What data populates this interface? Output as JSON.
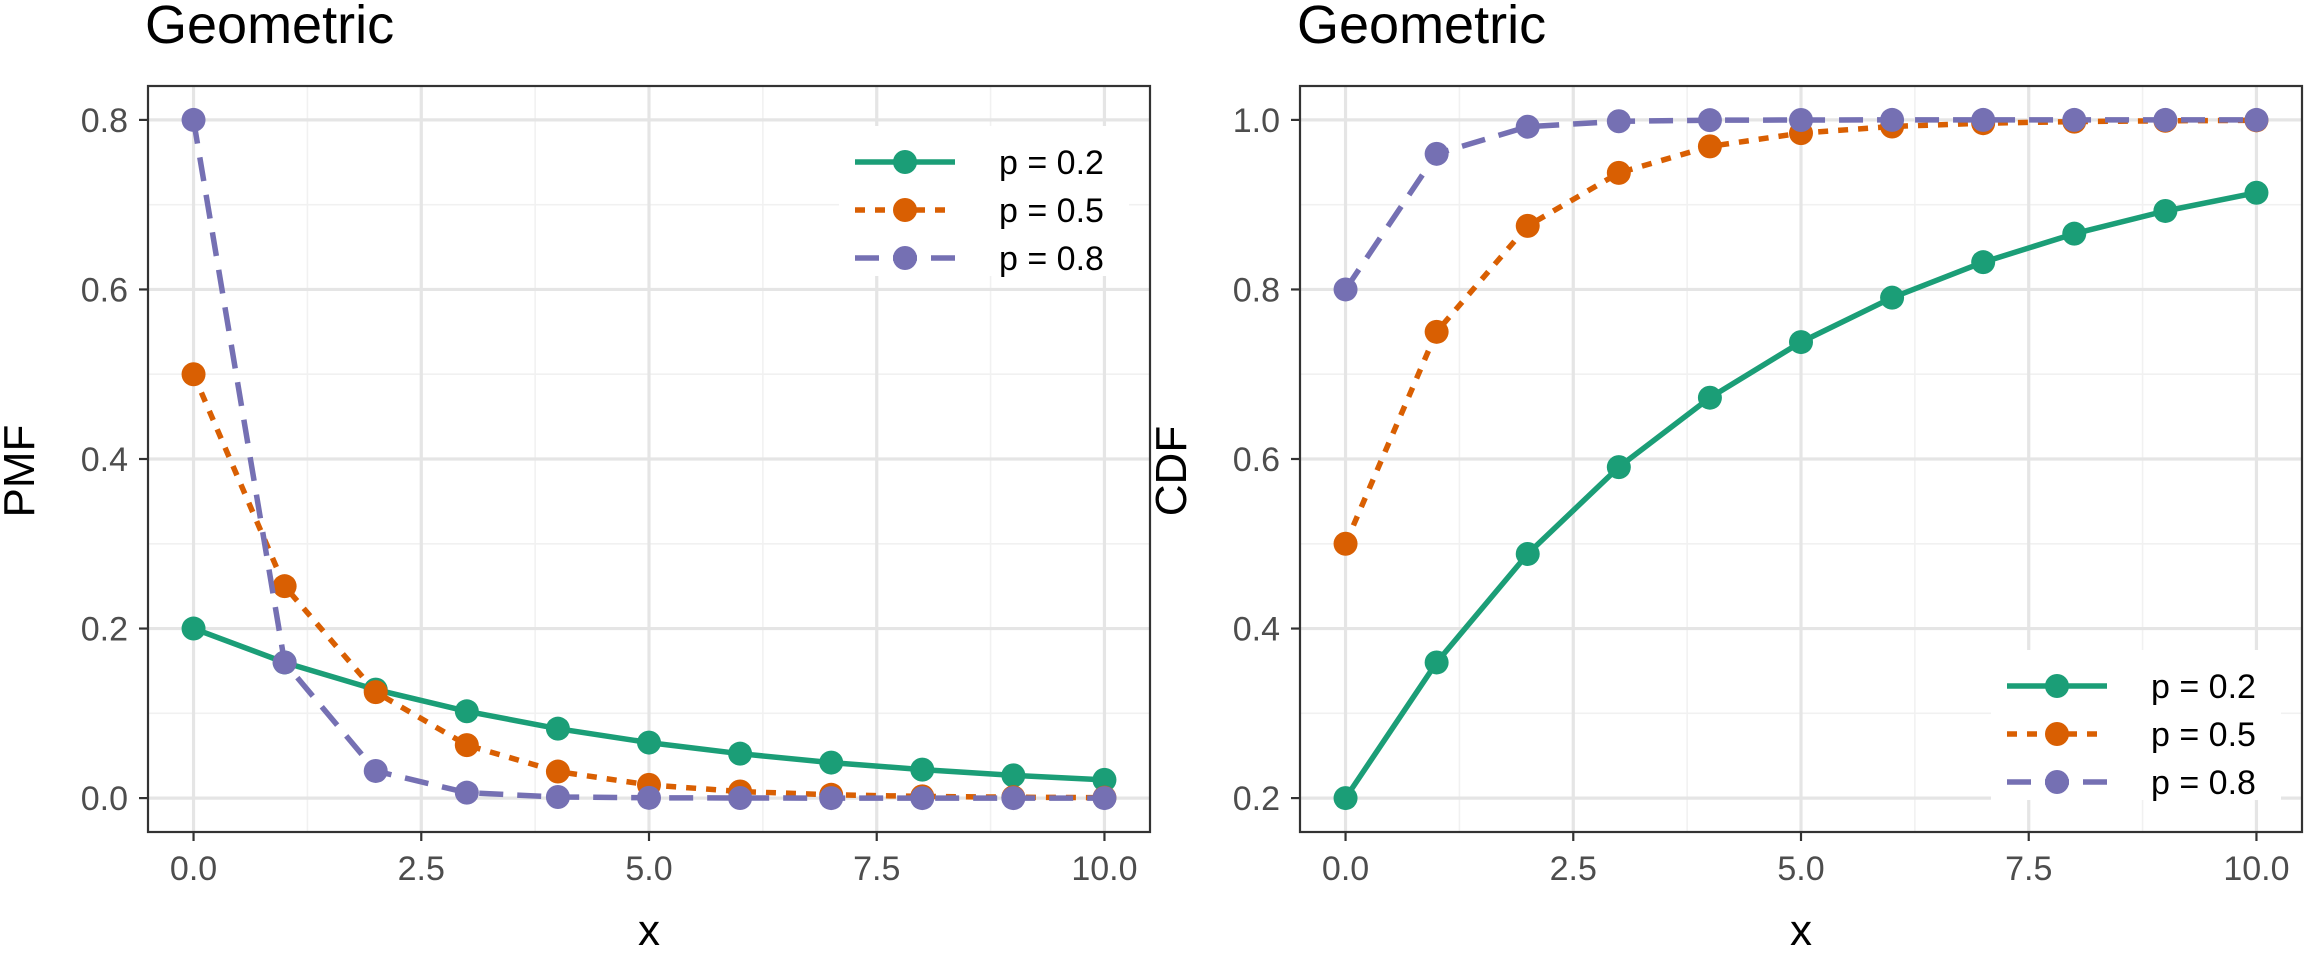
{
  "chart_data": [
    {
      "type": "line",
      "title": "Geometric",
      "xlabel": "x",
      "ylabel": "PMF",
      "xlim": [
        -0.5,
        10.5
      ],
      "ylim": [
        -0.04,
        0.84
      ],
      "x_ticks": [
        0,
        2.5,
        5,
        7.5,
        10
      ],
      "x_tick_labels": [
        "0.0",
        "2.5",
        "5.0",
        "7.5",
        "10.0"
      ],
      "y_ticks": [
        0,
        0.2,
        0.4,
        0.6,
        0.8
      ],
      "y_tick_labels": [
        "0.0",
        "0.2",
        "0.4",
        "0.6",
        "0.8"
      ],
      "grid": true,
      "legend_position": "top-right",
      "x": [
        0,
        1,
        2,
        3,
        4,
        5,
        6,
        7,
        8,
        9,
        10
      ],
      "series": [
        {
          "name": "p = 0.2",
          "color": "#1b9e77",
          "dash": "solid",
          "values": [
            0.2,
            0.16,
            0.128,
            0.1024,
            0.0819,
            0.0655,
            0.0524,
            0.0419,
            0.0336,
            0.0268,
            0.0215
          ]
        },
        {
          "name": "p = 0.5",
          "color": "#d95f02",
          "dash": "dotted",
          "values": [
            0.5,
            0.25,
            0.125,
            0.0625,
            0.0313,
            0.0156,
            0.0078,
            0.0039,
            0.002,
            0.001,
            0.0005
          ]
        },
        {
          "name": "p = 0.8",
          "color": "#7570b3",
          "dash": "dashed",
          "values": [
            0.8,
            0.16,
            0.032,
            0.0064,
            0.0013,
            0.0003,
            0.0001,
            0.0,
            0.0,
            0.0,
            0.0
          ]
        }
      ]
    },
    {
      "type": "line",
      "title": "Geometric",
      "xlabel": "x",
      "ylabel": "CDF",
      "xlim": [
        -0.5,
        10.5
      ],
      "ylim": [
        0.16,
        1.04
      ],
      "x_ticks": [
        0,
        2.5,
        5,
        7.5,
        10
      ],
      "x_tick_labels": [
        "0.0",
        "2.5",
        "5.0",
        "7.5",
        "10.0"
      ],
      "y_ticks": [
        0.2,
        0.4,
        0.6,
        0.8,
        1.0
      ],
      "y_tick_labels": [
        "0.2",
        "0.4",
        "0.6",
        "0.8",
        "1.0"
      ],
      "grid": true,
      "legend_position": "bottom-right",
      "x": [
        0,
        1,
        2,
        3,
        4,
        5,
        6,
        7,
        8,
        9,
        10
      ],
      "series": [
        {
          "name": "p = 0.2",
          "color": "#1b9e77",
          "dash": "solid",
          "values": [
            0.2,
            0.36,
            0.488,
            0.5904,
            0.6723,
            0.7379,
            0.7903,
            0.8322,
            0.8658,
            0.8926,
            0.9141
          ]
        },
        {
          "name": "p = 0.5",
          "color": "#d95f02",
          "dash": "dotted",
          "values": [
            0.5,
            0.75,
            0.875,
            0.9375,
            0.9688,
            0.9844,
            0.9922,
            0.9961,
            0.998,
            0.999,
            0.9995
          ]
        },
        {
          "name": "p = 0.8",
          "color": "#7570b3",
          "dash": "dashed",
          "values": [
            0.8,
            0.96,
            0.992,
            0.9984,
            0.9997,
            0.9999,
            1.0,
            1.0,
            1.0,
            1.0,
            1.0
          ]
        }
      ]
    }
  ]
}
